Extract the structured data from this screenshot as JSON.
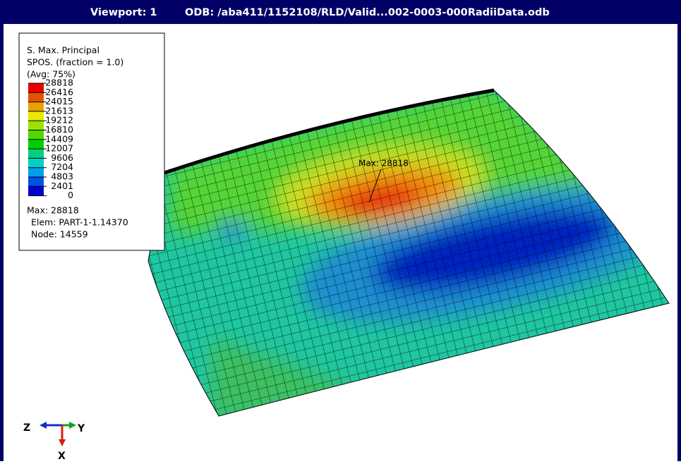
{
  "viewport": {
    "title": "Viewport: 1",
    "odb": "ODB: /aba411/1152108/RLD/Valid...002-0003-000RadiiData.odb"
  },
  "legend": {
    "lines": [
      "S. Max. Principal",
      "SPOS. (fraction = 1.0)",
      "(Avg: 75%)"
    ],
    "levels": [
      "28818",
      "26416",
      "24015",
      "21613",
      "19212",
      "16810",
      "14409",
      "12007",
      "9606",
      "7204",
      "4803",
      "2401",
      "0"
    ],
    "max": "Max: 28818",
    "elem": "Elem: PART-1-1.14370",
    "node": "Node: 14559"
  },
  "annotation": "Max: 28818",
  "triad": {
    "z": "Z",
    "y": "Y",
    "x": "X"
  }
}
